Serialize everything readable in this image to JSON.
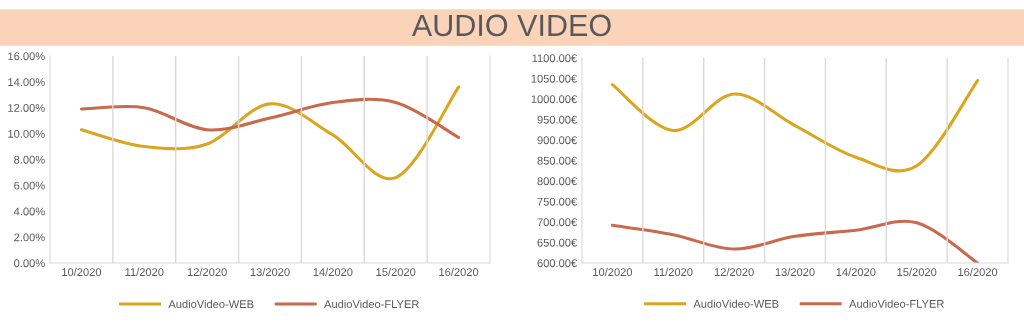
{
  "chart_data": [
    {
      "type": "line",
      "title": "AUDIO VIDEO",
      "categories": [
        "10/2020",
        "11/2020",
        "12/2020",
        "13/2020",
        "14/2020",
        "15/2020",
        "16/2020"
      ],
      "series": [
        {
          "name": "AudioVideo-WEB",
          "color": "#dba520",
          "values": [
            10.3,
            9.0,
            9.2,
            12.3,
            9.9,
            6.6,
            13.6
          ]
        },
        {
          "name": "AudioVideo-FLYER",
          "color": "#c9694d",
          "values": [
            11.9,
            12.0,
            10.3,
            11.2,
            12.4,
            12.4,
            9.7
          ]
        }
      ],
      "ylim": [
        0,
        16
      ],
      "yticks": [
        {
          "value": 0,
          "label": "0.00%"
        },
        {
          "value": 2,
          "label": "2.00%"
        },
        {
          "value": 4,
          "label": "4.00%"
        },
        {
          "value": 6,
          "label": "6.00%"
        },
        {
          "value": 8,
          "label": "8.00%"
        },
        {
          "value": 10,
          "label": "10.00%"
        },
        {
          "value": 12,
          "label": "12.00%"
        },
        {
          "value": 14,
          "label": "14.00%"
        },
        {
          "value": 16,
          "label": "16.00%"
        }
      ],
      "grid": "x",
      "legend": "bottom",
      "marker": "none",
      "line_style": "solid"
    },
    {
      "type": "line",
      "categories": [
        "10/2020",
        "11/2020",
        "12/2020",
        "13/2020",
        "14/2020",
        "15/2020",
        "16/2020"
      ],
      "series": [
        {
          "name": "AudioVideo-WEB",
          "color": "#dba520",
          "values": [
            1035,
            923,
            1012,
            935,
            858,
            837,
            1045
          ]
        },
        {
          "name": "AudioVideo-FLYER",
          "color": "#c9694d",
          "values": [
            692,
            669,
            634,
            665,
            680,
            698,
            600
          ]
        }
      ],
      "ylim": [
        600,
        1100
      ],
      "yticks": [
        {
          "value": 600,
          "label": "600.00€"
        },
        {
          "value": 650,
          "label": "650.00€"
        },
        {
          "value": 700,
          "label": "700.00€"
        },
        {
          "value": 750,
          "label": "750.00€"
        },
        {
          "value": 800,
          "label": "800.00€"
        },
        {
          "value": 850,
          "label": "850.00€"
        },
        {
          "value": 900,
          "label": "900.00€"
        },
        {
          "value": 950,
          "label": "950.00€"
        },
        {
          "value": 1000,
          "label": "1000.00€"
        },
        {
          "value": 1050,
          "label": "1050.00€"
        },
        {
          "value": 1100,
          "label": "1100.00€"
        }
      ],
      "grid": "x",
      "legend": "bottom",
      "marker": "none",
      "line_style": "solid"
    }
  ]
}
